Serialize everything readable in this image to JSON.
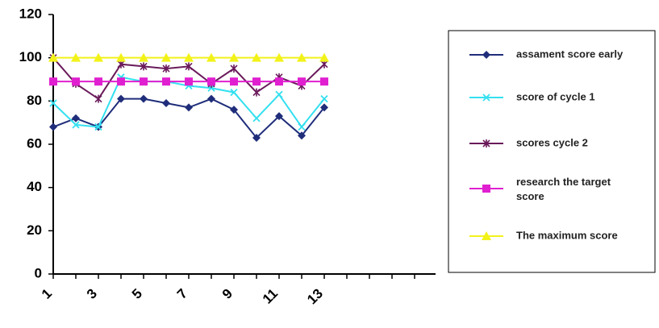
{
  "chart_data": {
    "type": "line",
    "categories": [
      "1",
      null,
      "3",
      null,
      "5",
      null,
      "7",
      null,
      "9",
      null,
      "11",
      null,
      "13"
    ],
    "series": [
      {
        "name": "assament score early",
        "color": "#1f2d7a",
        "marker": "diamond",
        "values": [
          68,
          72,
          68,
          81,
          81,
          79,
          77,
          81,
          76,
          63,
          73,
          64,
          77
        ]
      },
      {
        "name": "score of cycle 1",
        "color": "#33e0f0",
        "marker": "x",
        "values": [
          79,
          69,
          68,
          91,
          89,
          89,
          87,
          86,
          84,
          72,
          83,
          68,
          81
        ]
      },
      {
        "name": "scores cycle 2",
        "color": "#6a1a5a",
        "marker": "star",
        "values": [
          100,
          88,
          81,
          97,
          96,
          95,
          96,
          88,
          95,
          84,
          91,
          87,
          97
        ]
      },
      {
        "name": "research the target score",
        "color": "#e020d0",
        "marker": "square",
        "values": [
          89,
          89,
          89,
          89,
          89,
          89,
          89,
          89,
          89,
          89,
          89,
          89,
          89
        ]
      },
      {
        "name": "The maximum score",
        "color": "#f2f21a",
        "marker": "triangle",
        "values": [
          100,
          100,
          100,
          100,
          100,
          100,
          100,
          100,
          100,
          100,
          100,
          100,
          100
        ]
      }
    ],
    "ylim": [
      0,
      120
    ],
    "yticks": [
      0,
      20,
      40,
      60,
      80,
      100,
      120
    ],
    "legend": "right"
  }
}
